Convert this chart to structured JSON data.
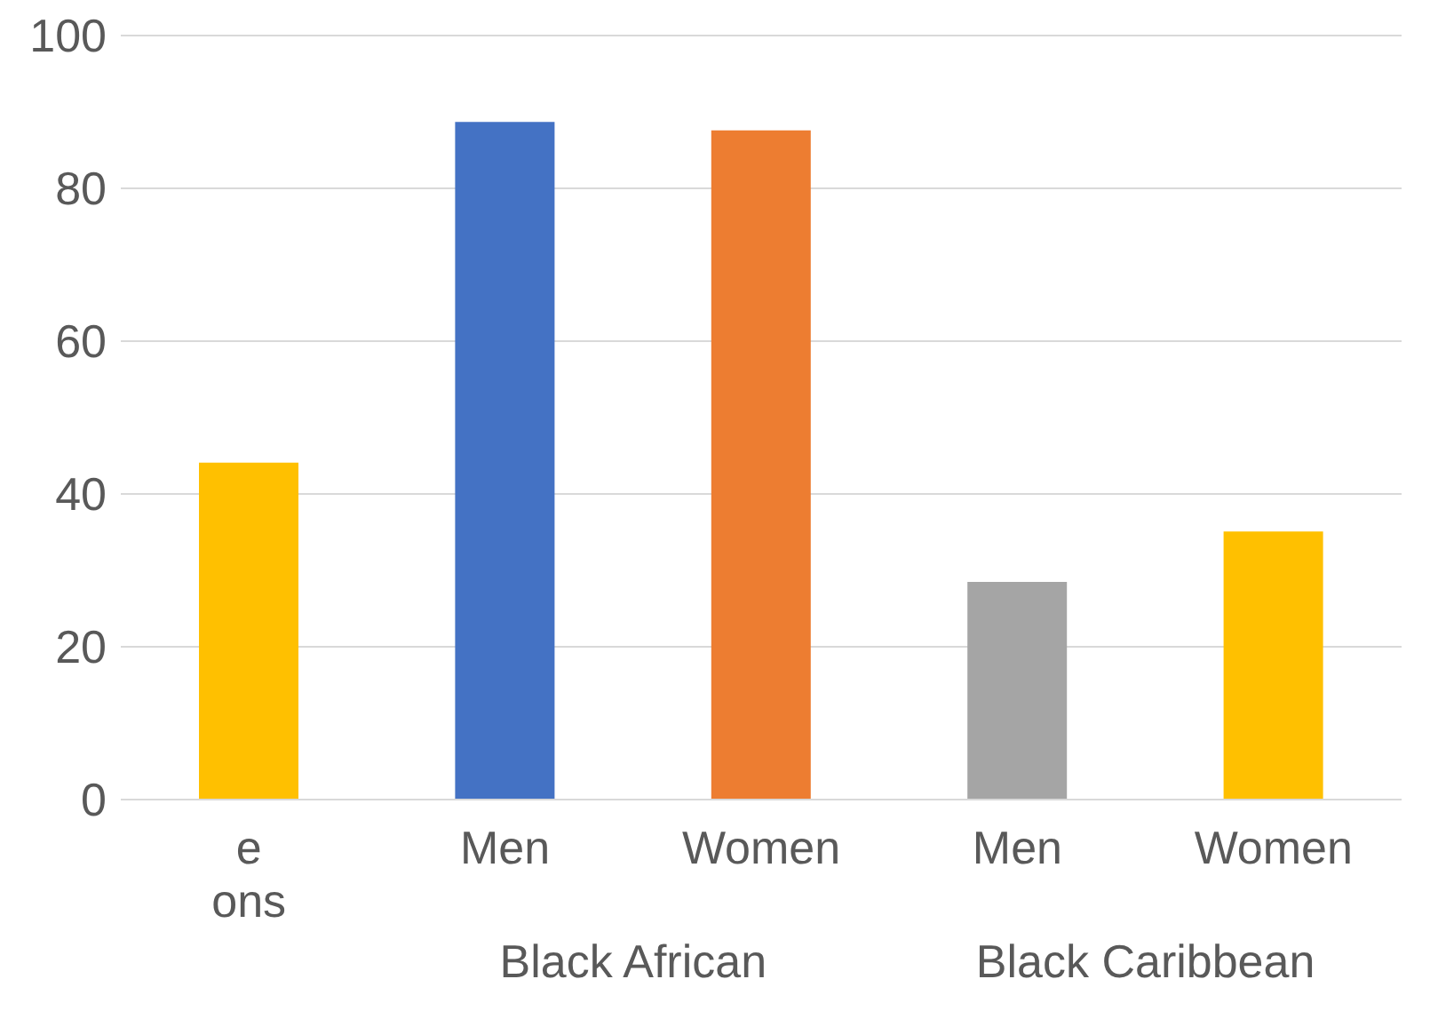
{
  "chart_data": {
    "type": "bar",
    "categories": [
      "e\nons",
      "Men",
      "Women",
      "Men",
      "Women"
    ],
    "values": [
      44.1,
      88.7,
      87.6,
      28.5,
      35.1
    ],
    "colors": [
      "#ffc000",
      "#4472c4",
      "#ed7d31",
      "#a5a5a5",
      "#ffc000"
    ],
    "ylim": [
      0,
      100
    ],
    "yticks": [
      0,
      20,
      40,
      60,
      80,
      100
    ],
    "grid": "y",
    "annotations": [
      "Black African",
      "Black Caribbean"
    ]
  }
}
